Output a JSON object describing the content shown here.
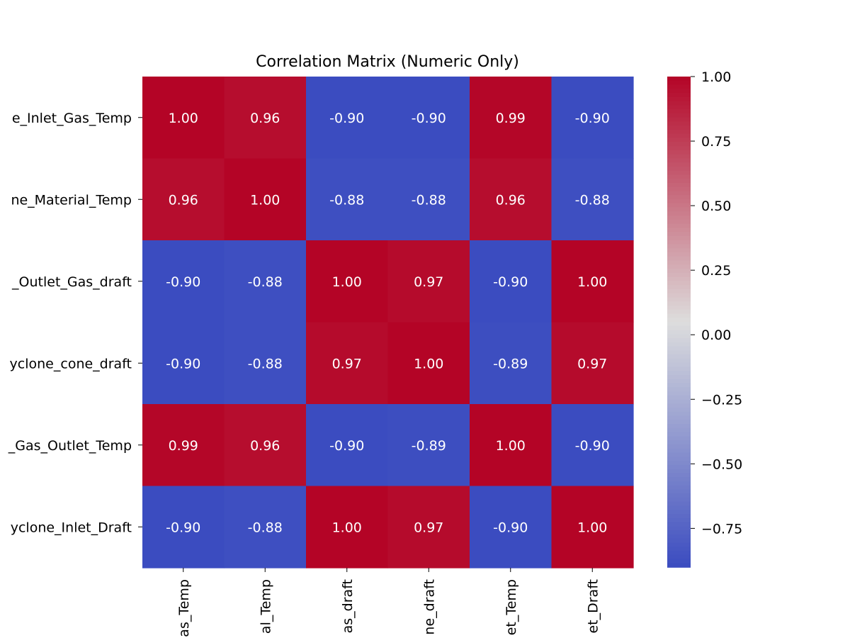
{
  "chart_data": {
    "type": "heatmap",
    "title": "Correlation Matrix (Numeric Only)",
    "rows": [
      "e_Inlet_Gas_Temp",
      "ne_Material_Temp",
      "_Outlet_Gas_draft",
      "yclone_cone_draft",
      "_Gas_Outlet_Temp",
      "yclone_Inlet_Draft"
    ],
    "columns": [
      "as_Temp",
      "al_Temp",
      "as_draft",
      "ne_draft",
      "et_Temp",
      "et_Draft"
    ],
    "values": [
      [
        1.0,
        0.96,
        -0.9,
        -0.9,
        0.99,
        -0.9
      ],
      [
        0.96,
        1.0,
        -0.88,
        -0.88,
        0.96,
        -0.88
      ],
      [
        -0.9,
        -0.88,
        1.0,
        0.97,
        -0.9,
        1.0
      ],
      [
        -0.9,
        -0.88,
        0.97,
        1.0,
        -0.89,
        0.97
      ],
      [
        0.99,
        0.96,
        -0.9,
        -0.89,
        1.0,
        -0.9
      ],
      [
        -0.9,
        -0.88,
        1.0,
        0.97,
        -0.9,
        1.0
      ]
    ],
    "value_format": "0.00",
    "colormap": "coolwarm",
    "colormap_colors": [
      "#3b4cc0",
      "#dddddd",
      "#b40426"
    ],
    "vmin": -0.9,
    "vmax": 1.0,
    "colorbar_ticks": [
      "1.00",
      "0.75",
      "0.50",
      "0.25",
      "0.00",
      "−0.25",
      "−0.50",
      "−0.75"
    ],
    "colorbar_tick_values": [
      1.0,
      0.75,
      0.5,
      0.25,
      0.0,
      -0.25,
      -0.5,
      -0.75
    ]
  }
}
